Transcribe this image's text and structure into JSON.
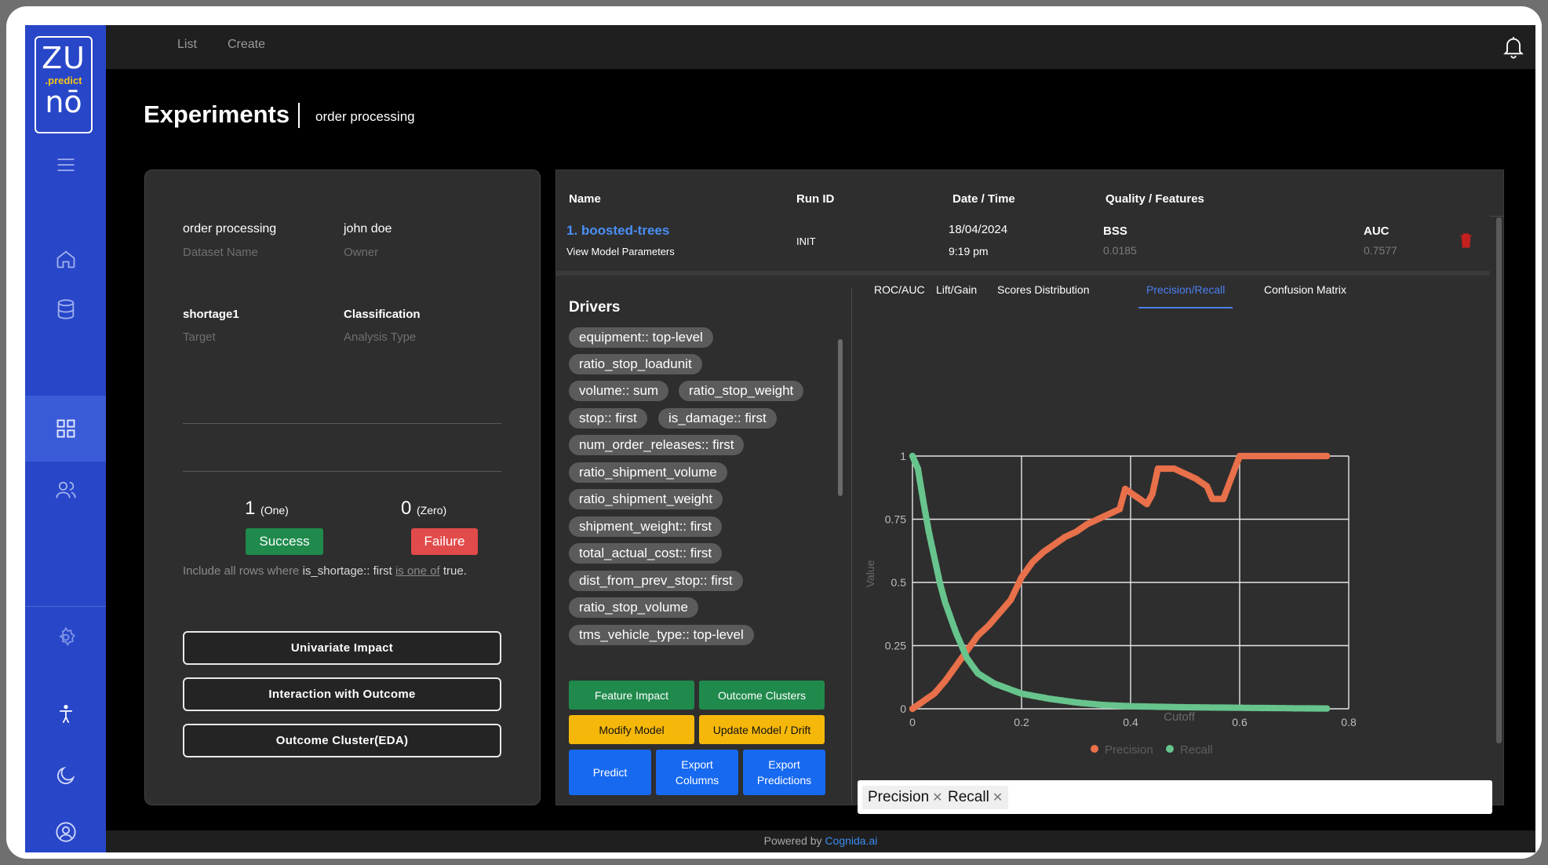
{
  "app": {
    "logo_top": "ZU",
    "logo_mid": ".predict",
    "logo_bottom": "nō"
  },
  "nav": {
    "list": "List",
    "create": "Create"
  },
  "page": {
    "title": "Experiments",
    "subtitle": "order processing"
  },
  "sidebar_icons": [
    "menu-icon",
    "home-icon",
    "database-icon",
    "grid-icon",
    "users-icon",
    "gear-icon",
    "accessibility-icon",
    "moon-icon",
    "account-icon"
  ],
  "summary": {
    "dataset_name": "order processing",
    "dataset_name_label": "Dataset Name",
    "owner": "john doe",
    "owner_label": "Owner",
    "target": "shortage1",
    "target_label": "Target",
    "analysis_type": "Classification",
    "analysis_type_label": "Analysis Type",
    "filter_prefix": "Include all rows where ",
    "filter_field": "is_shortage:: first",
    "filter_op": "is one of",
    "filter_value": "true.",
    "one_value": "1",
    "one_label": "(One)",
    "zero_value": "0",
    "zero_label": "(Zero)",
    "success": "Success",
    "failure": "Failure",
    "btn_univariate": "Univariate Impact",
    "btn_interaction": "Interaction with Outcome",
    "btn_cluster": "Outcome Cluster(EDA)"
  },
  "table": {
    "headers": {
      "name": "Name",
      "run_id": "Run ID",
      "datetime": "Date / Time",
      "quality": "Quality / Features"
    },
    "row": {
      "name": "1. boosted-trees",
      "link": "View Model Parameters",
      "run_id": "INIT",
      "date": "18/04/2024",
      "time": "9:19 pm",
      "bss_label": "BSS",
      "bss_value": "0.0185",
      "auc_label": "AUC",
      "auc_value": "0.7577"
    }
  },
  "drivers": {
    "title": "Drivers",
    "items": [
      "equipment:: top-level",
      "ratio_stop_loadunit",
      "volume:: sum",
      "ratio_stop_weight",
      "stop:: first",
      "is_damage:: first",
      "num_order_releases:: first",
      "ratio_shipment_volume",
      "ratio_shipment_weight",
      "shipment_weight:: first",
      "total_actual_cost:: first",
      "dist_from_prev_stop:: first",
      "ratio_stop_volume",
      "tms_vehicle_type:: top-level"
    ]
  },
  "actions": {
    "feature_impact": "Feature Impact",
    "outcome_clusters": "Outcome Clusters",
    "modify_model": "Modify Model",
    "update_model": "Update Model / Drift",
    "predict": "Predict",
    "export_columns": "Export Columns",
    "export_predictions": "Export Predictions"
  },
  "tabs": [
    "ROC/AUC",
    "Lift/Gain",
    "Scores Distribution",
    "Precision/Recall",
    "Confusion Matrix"
  ],
  "active_tab": "Precision/Recall",
  "colors": {
    "precision": "#e8704a",
    "recall": "#67c48c",
    "accent": "#2846c8",
    "success": "#1f8a4c",
    "failure": "#e24b4b"
  },
  "chart_data": {
    "type": "scatter",
    "xlabel": "Cutoff",
    "ylabel": "Value",
    "xlim": [
      0,
      0.8
    ],
    "ylim": [
      0,
      1
    ],
    "xticks": [
      "0",
      "0.2",
      "0.4",
      "0.6",
      "0.8"
    ],
    "yticks": [
      "0",
      "0.25",
      "0.5",
      "0.75",
      "1"
    ],
    "grid": true,
    "legend": "bottom",
    "series": [
      {
        "name": "Precision",
        "points": [
          [
            0,
            0
          ],
          [
            0.02,
            0.03
          ],
          [
            0.04,
            0.06
          ],
          [
            0.06,
            0.11
          ],
          [
            0.08,
            0.17
          ],
          [
            0.1,
            0.23
          ],
          [
            0.12,
            0.29
          ],
          [
            0.14,
            0.33
          ],
          [
            0.16,
            0.38
          ],
          [
            0.18,
            0.43
          ],
          [
            0.2,
            0.52
          ],
          [
            0.22,
            0.58
          ],
          [
            0.24,
            0.62
          ],
          [
            0.26,
            0.65
          ],
          [
            0.28,
            0.68
          ],
          [
            0.3,
            0.7
          ],
          [
            0.32,
            0.73
          ],
          [
            0.34,
            0.75
          ],
          [
            0.36,
            0.77
          ],
          [
            0.38,
            0.79
          ],
          [
            0.39,
            0.87
          ],
          [
            0.41,
            0.84
          ],
          [
            0.43,
            0.81
          ],
          [
            0.44,
            0.85
          ],
          [
            0.45,
            0.95
          ],
          [
            0.48,
            0.95
          ],
          [
            0.5,
            0.93
          ],
          [
            0.52,
            0.91
          ],
          [
            0.54,
            0.88
          ],
          [
            0.55,
            0.83
          ],
          [
            0.57,
            0.83
          ],
          [
            0.6,
            1
          ],
          [
            0.64,
            1
          ],
          [
            0.68,
            1
          ],
          [
            0.72,
            1
          ],
          [
            0.76,
            1
          ]
        ]
      },
      {
        "name": "Recall",
        "points": [
          [
            0,
            1
          ],
          [
            0.01,
            0.95
          ],
          [
            0.02,
            0.82
          ],
          [
            0.03,
            0.7
          ],
          [
            0.04,
            0.6
          ],
          [
            0.05,
            0.5
          ],
          [
            0.06,
            0.42
          ],
          [
            0.08,
            0.3
          ],
          [
            0.1,
            0.2
          ],
          [
            0.12,
            0.14
          ],
          [
            0.15,
            0.1
          ],
          [
            0.2,
            0.06
          ],
          [
            0.25,
            0.04
          ],
          [
            0.3,
            0.025
          ],
          [
            0.35,
            0.015
          ],
          [
            0.4,
            0.01
          ],
          [
            0.5,
            0.006
          ],
          [
            0.6,
            0.004
          ],
          [
            0.7,
            0.002
          ],
          [
            0.76,
            0.001
          ]
        ]
      }
    ]
  },
  "multiselect": {
    "tags": [
      "Precision",
      "Recall"
    ]
  },
  "footer": {
    "prefix": "Powered by ",
    "link": "Cognida.ai"
  }
}
